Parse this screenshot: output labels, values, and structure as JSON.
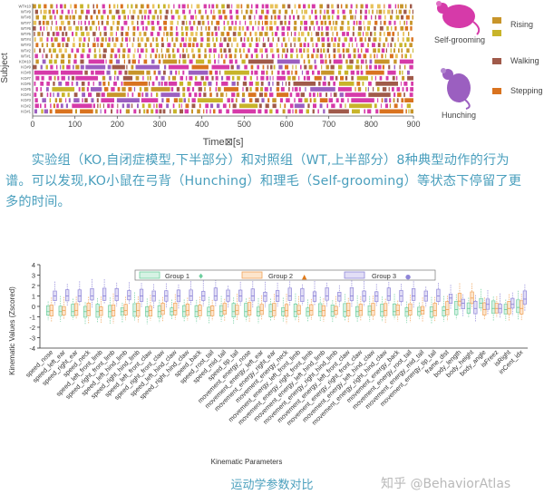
{
  "ethogram": {
    "y_axis_label": "Subject",
    "x_axis_label": "Time⊠[s]",
    "x_ticks": [
      "0",
      "100",
      "200",
      "300",
      "400",
      "500",
      "600",
      "700",
      "800",
      "900"
    ],
    "wt_subjects": [
      "WT#10",
      "WT#9",
      "WT#8",
      "WT#7",
      "WT#6",
      "WT#5",
      "WT#4",
      "WT#3",
      "WT#2",
      "WT#1"
    ],
    "ko_subjects": [
      "KO#10",
      "KO#9",
      "KO#8",
      "KO#7",
      "KO#6",
      "KO#5",
      "KO#4",
      "KO#3",
      "KO#2",
      "KO#1"
    ],
    "legend": [
      {
        "label": "Self-grooming",
        "color": "#d63aa9"
      },
      {
        "label": "Hunching",
        "color": "#9b5fc0"
      },
      {
        "label": "Rising",
        "color": "#c8952a"
      },
      {
        "label": "Walking",
        "color": "#a05a4a"
      },
      {
        "label": "Stepping",
        "color": "#d9731f"
      }
    ],
    "colors": {
      "rising_alt": "#c8b42a"
    }
  },
  "caption": {
    "line1": "　　实验组（KO,自闭症模型,下半部分）和对照组（WT,上半部分）8种典型动作的行为",
    "line2": "谱。可以发现,KO小鼠在弓背（Hunching）和理毛（Self-grooming）等状态下停留了更",
    "line3": "多的时间。"
  },
  "chart_data": {
    "type": "box",
    "ylabel": "Kinematic Values (Zscored)",
    "xlabel": "Kinematic Parameters",
    "ylim": [
      -4,
      4
    ],
    "y_ticks": [
      -4,
      -3,
      -2,
      -1,
      0,
      1,
      2,
      3,
      4
    ],
    "legend_placement": "top",
    "series": [
      {
        "name": "Group 1",
        "color": "#6fcf9f",
        "marker": "♦"
      },
      {
        "name": "Group 2",
        "color": "#f0a35a",
        "marker": "▲"
      },
      {
        "name": "Group 3",
        "color": "#8f86d8",
        "marker": "●"
      }
    ],
    "categories": [
      "speed_nose",
      "speed_left_ear",
      "speed_right_ear",
      "speed_neck",
      "speed_left_front_limb",
      "speed_right_front_limb",
      "speed_left_hind_limb",
      "speed_right_hind_limb",
      "speed_left_front_claw",
      "speed_right_front_claw",
      "speed_left_hind_claw",
      "speed_right_hind_claw",
      "speed_back",
      "speed_root_tail",
      "speed_mid_tail",
      "speed_tip_tail",
      "movement_energy_nose",
      "movement_energy_left_ear",
      "movement_energy_right_ear",
      "movement_energy_neck",
      "movement_energy_left_front_limb",
      "movement_energy_right_front_limb",
      "movement_energy_left_hind_limb",
      "movement_energy_right_hind_limb",
      "movement_energy_left_front_claw",
      "movement_energy_right_front_claw",
      "movement_energy_left_hind_claw",
      "movement_energy_right_hind_claw",
      "movement_energy_back",
      "movement_energy_root_tail",
      "movement_energy_mid_tail",
      "movement_energy_tip_tail",
      "frame_dist",
      "body_length",
      "body_height",
      "body_angle",
      "isFreez",
      "isRight",
      "inCent_idx"
    ],
    "group1_median": [
      -0.5,
      -0.5,
      -0.5,
      -0.5,
      -0.5,
      -0.5,
      -0.5,
      -0.5,
      -0.5,
      -0.5,
      -0.5,
      -0.5,
      -0.5,
      -0.5,
      -0.5,
      -0.5,
      -0.5,
      -0.5,
      -0.5,
      -0.5,
      -0.5,
      -0.5,
      -0.5,
      -0.5,
      -0.5,
      -0.5,
      -0.5,
      -0.5,
      -0.5,
      -0.5,
      -0.5,
      -0.5,
      -0.4,
      -0.3,
      -0.2,
      0.3,
      -0.2,
      -0.3,
      -0.1
    ],
    "group2_median": [
      -0.4,
      -0.4,
      -0.4,
      -0.4,
      -0.4,
      -0.4,
      -0.4,
      -0.4,
      -0.4,
      -0.4,
      -0.4,
      -0.4,
      -0.4,
      -0.4,
      -0.4,
      -0.4,
      -0.4,
      -0.4,
      -0.4,
      -0.4,
      -0.4,
      -0.4,
      -0.4,
      -0.4,
      -0.4,
      -0.4,
      -0.4,
      -0.4,
      -0.4,
      -0.4,
      -0.4,
      -0.4,
      -0.3,
      0.5,
      0.8,
      -0.3,
      -0.2,
      -0.2,
      -0.2
    ],
    "group3_median": [
      1.0,
      1.0,
      1.0,
      1.0,
      1.0,
      1.0,
      1.0,
      1.0,
      1.0,
      1.0,
      1.0,
      1.0,
      1.0,
      1.0,
      1.0,
      1.0,
      1.0,
      1.0,
      1.0,
      1.0,
      1.0,
      1.0,
      1.0,
      1.0,
      1.0,
      1.0,
      1.0,
      1.0,
      1.0,
      1.0,
      1.0,
      1.0,
      0.8,
      0.3,
      -0.2,
      0.2,
      -0.2,
      0.2,
      0.7
    ]
  },
  "fig2_caption": "运动学参数对比",
  "watermark": "知乎 @BehaviorAtlas"
}
